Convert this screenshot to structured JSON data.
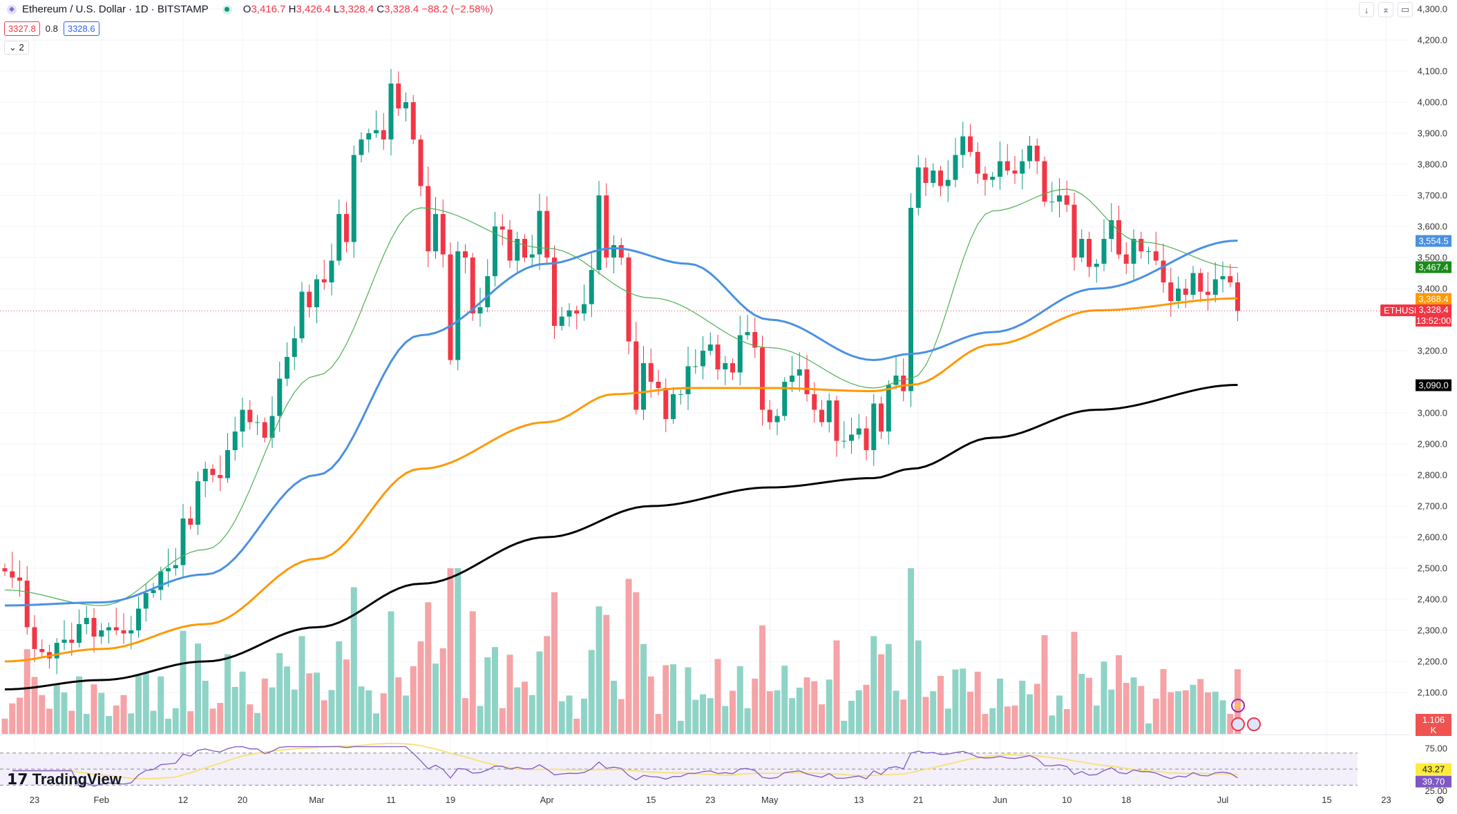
{
  "header": {
    "symbol": "Ethereum / U.S. Dollar · 1D · BITSTAMP",
    "open_label": "O",
    "open": "3,416.7",
    "high_label": "H",
    "high": "3,426.4",
    "low_label": "L",
    "low": "3,328.4",
    "close_label": "C",
    "close": "3,328.4",
    "change": "−88.2 (−2.58%)",
    "bid": "3327.8",
    "spread": "0.8",
    "ask": "3328.6",
    "collapse": "⌄ 2"
  },
  "toolbar": {
    "download": "↓",
    "collapse": "⌅",
    "fullscreen": "▭"
  },
  "price_axis": [
    "4,300.0",
    "4,200.0",
    "4,100.0",
    "4,000.0",
    "3,900.0",
    "3,800.0",
    "3,700.0",
    "3,600.0",
    "3,500.0",
    "3,400.0",
    "3,200.0",
    "3,000.0",
    "2,900.0",
    "2,800.0",
    "2,700.0",
    "2,600.0",
    "2,500.0",
    "2,400.0",
    "2,300.0",
    "2,200.0",
    "2,100.0"
  ],
  "tags": {
    "ma50": "3,554.5",
    "ma20": "3,467.4",
    "ma100": "3,368.4",
    "ticker": "ETHUSD",
    "last": "3,328.4",
    "countdown": "13:52:00",
    "ma200": "3,090.0",
    "volume": "1.106 K",
    "rsi_ma": "43.27",
    "rsi": "39.70"
  },
  "rsi_axis": [
    "75.00",
    "25.00"
  ],
  "time_axis": [
    "23",
    "Feb",
    "12",
    "20",
    "Mar",
    "11",
    "19",
    "Apr",
    "15",
    "23",
    "May",
    "13",
    "21",
    "Jun",
    "10",
    "18",
    "Jul",
    "15",
    "23"
  ],
  "brand": "TradingView",
  "colors": {
    "up": "#089981",
    "down": "#f23645",
    "ma20": "#4caf50",
    "ma50": "#4a90e2",
    "ma100": "#ff9800",
    "ma200": "#000000",
    "rsi": "#7e57c2"
  },
  "chart_data": {
    "type": "candlestick",
    "start_date": "Jan 19",
    "interval": "1D",
    "closes": [
      2490,
      2470,
      2460,
      2310,
      2240,
      2230,
      2210,
      2260,
      2270,
      2260,
      2320,
      2340,
      2280,
      2300,
      2310,
      2300,
      2290,
      2300,
      2370,
      2420,
      2430,
      2490,
      2500,
      2510,
      2660,
      2640,
      2780,
      2820,
      2800,
      2790,
      2880,
      2940,
      3010,
      2970,
      2970,
      2920,
      2990,
      3110,
      3180,
      3240,
      3390,
      3340,
      3430,
      3420,
      3490,
      3640,
      3550,
      3830,
      3880,
      3900,
      3910,
      3880,
      4060,
      3980,
      4000,
      3880,
      3730,
      3520,
      3640,
      3510,
      3170,
      3520,
      3500,
      3320,
      3340,
      3440,
      3600,
      3590,
      3490,
      3560,
      3500,
      3510,
      3650,
      3500,
      3280,
      3310,
      3330,
      3320,
      3350,
      3460,
      3700,
      3500,
      3540,
      3500,
      3230,
      3010,
      3160,
      3100,
      3080,
      2980,
      3060,
      3060,
      3150,
      3150,
      3200,
      3220,
      3140,
      3160,
      3130,
      3250,
      3260,
      3210,
      3010,
      2970,
      2990,
      3100,
      3120,
      3140,
      3060,
      3010,
      2970,
      3040,
      2910,
      2910,
      2930,
      2950,
      2880,
      3030,
      2940,
      3090,
      3120,
      3070,
      3660,
      3790,
      3740,
      3780,
      3730,
      3750,
      3830,
      3890,
      3840,
      3770,
      3750,
      3760,
      3810,
      3780,
      3770,
      3810,
      3860,
      3810,
      3680,
      3680,
      3700,
      3670,
      3500,
      3560,
      3470,
      3480,
      3560,
      3620,
      3510,
      3480,
      3560,
      3520,
      3520,
      3490,
      3420,
      3360,
      3400,
      3380,
      3450,
      3390,
      3380,
      3430,
      3440,
      3420,
      3328.4
    ],
    "first_open": 2500,
    "moving_averages": [
      {
        "name": "MA20",
        "anchors": [
          [
            0,
            2430
          ],
          [
            13,
            2380
          ],
          [
            27,
            2560
          ],
          [
            42,
            3120
          ],
          [
            56,
            3660
          ],
          [
            73,
            3530
          ],
          [
            87,
            3370
          ],
          [
            103,
            3210
          ],
          [
            117,
            3080
          ],
          [
            122,
            3110
          ],
          [
            133,
            3650
          ],
          [
            143,
            3720
          ],
          [
            153,
            3550
          ],
          [
            166,
            3467.4
          ]
        ]
      },
      {
        "name": "MA50",
        "anchors": [
          [
            0,
            2380
          ],
          [
            13,
            2390
          ],
          [
            27,
            2480
          ],
          [
            42,
            2800
          ],
          [
            56,
            3250
          ],
          [
            73,
            3480
          ],
          [
            82,
            3530
          ],
          [
            92,
            3480
          ],
          [
            103,
            3300
          ],
          [
            117,
            3170
          ],
          [
            122,
            3190
          ],
          [
            133,
            3260
          ],
          [
            147,
            3400
          ],
          [
            166,
            3554.5
          ]
        ]
      },
      {
        "name": "MA100",
        "anchors": [
          [
            0,
            2200
          ],
          [
            13,
            2240
          ],
          [
            27,
            2320
          ],
          [
            42,
            2530
          ],
          [
            56,
            2820
          ],
          [
            73,
            2970
          ],
          [
            82,
            3060
          ],
          [
            92,
            3080
          ],
          [
            103,
            3080
          ],
          [
            117,
            3070
          ],
          [
            122,
            3090
          ],
          [
            133,
            3220
          ],
          [
            147,
            3330
          ],
          [
            166,
            3368.4
          ]
        ]
      },
      {
        "name": "MA200",
        "anchors": [
          [
            0,
            2110
          ],
          [
            13,
            2140
          ],
          [
            27,
            2200
          ],
          [
            42,
            2310
          ],
          [
            56,
            2450
          ],
          [
            73,
            2600
          ],
          [
            87,
            2700
          ],
          [
            103,
            2760
          ],
          [
            117,
            2790
          ],
          [
            122,
            2820
          ],
          [
            133,
            2920
          ],
          [
            147,
            3010
          ],
          [
            166,
            3090
          ]
        ]
      }
    ],
    "ylim": [
      2050,
      4300
    ],
    "rsi_levels": [
      70,
      50,
      30
    ]
  }
}
